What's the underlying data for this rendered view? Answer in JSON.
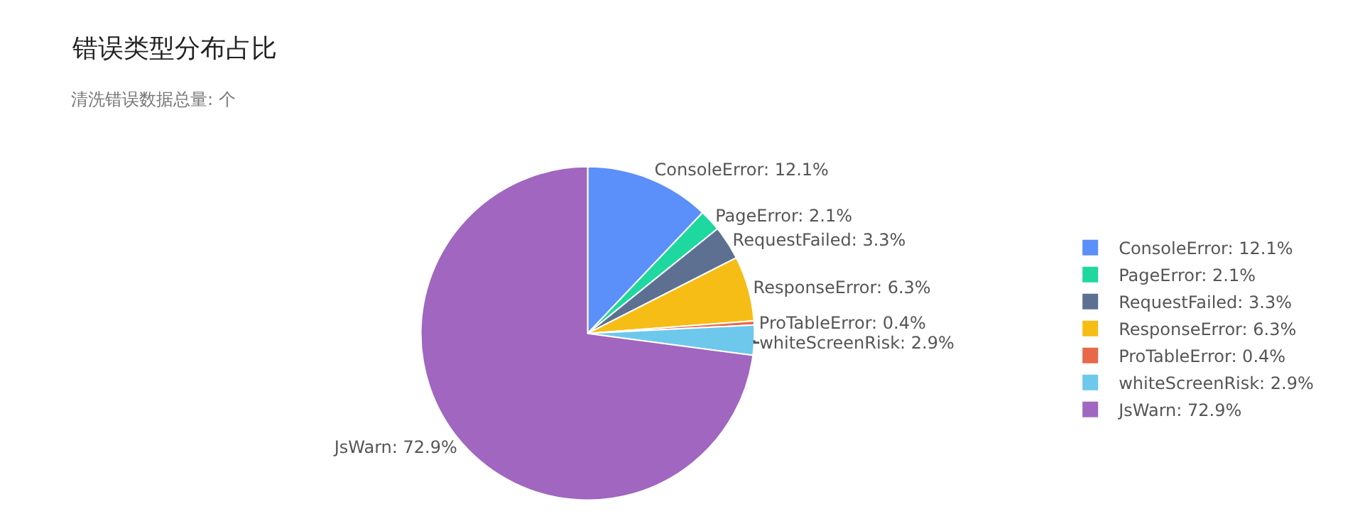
{
  "chart_data": {
    "type": "pie",
    "title": "错误类型分布占比",
    "subtitle": "清洗错误数据总量: 个",
    "categories": [
      "ConsoleError: 12.1%",
      "PageError: 2.1%",
      "RequestFailed: 3.3%",
      "ResponseError: 6.3%",
      "ProTableError: 0.4%",
      "whiteScreenRisk: 2.9%",
      "JsWarn: 72.9%"
    ],
    "values": [
      12.1,
      2.1,
      3.3,
      6.3,
      0.4,
      2.9,
      72.9
    ],
    "colors": [
      "#5b8ff9",
      "#1fd8a0",
      "#5d7092",
      "#f6bd16",
      "#e8684a",
      "#6dc8ec",
      "#a066c0"
    ],
    "legend": "right"
  }
}
